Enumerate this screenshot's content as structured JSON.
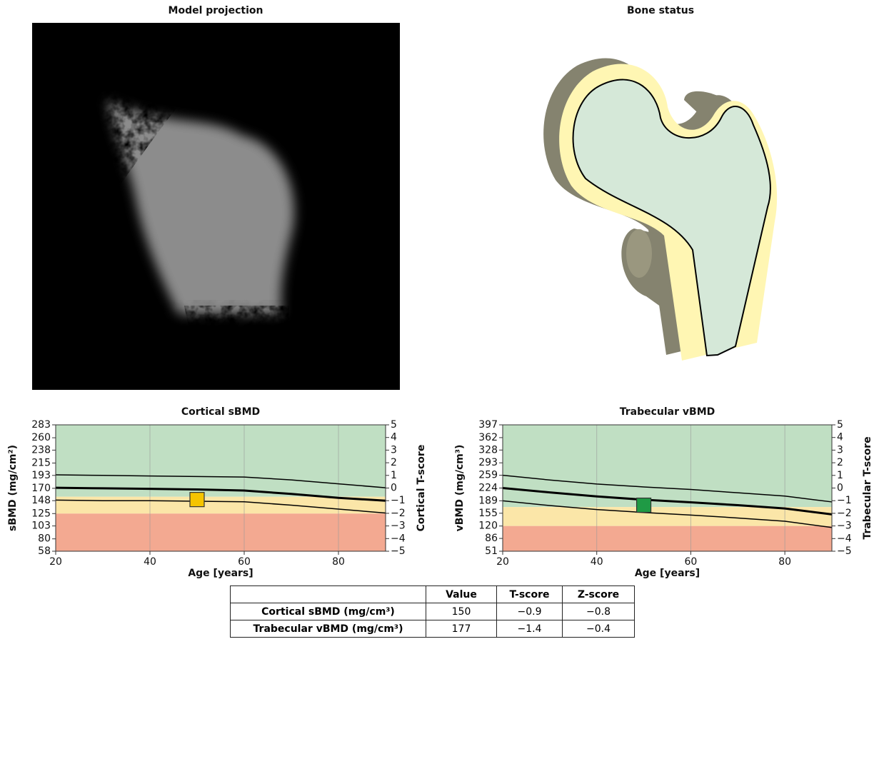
{
  "panels": [
    {
      "title": "Model projection"
    },
    {
      "title": "Bone status"
    }
  ],
  "chart_data": [
    {
      "type": "line",
      "title": "Cortical sBMD",
      "xlabel": "Age [years]",
      "ylabel": "sBMD (mg/cm²)",
      "y2label": "Cortical T-score",
      "x": [
        20,
        30,
        40,
        50,
        60,
        70,
        80,
        90
      ],
      "series": [
        {
          "color": "#000000",
          "values": [
            171,
            170,
            169,
            168,
            166,
            160,
            153,
            148
          ]
        },
        {
          "color": "#000000",
          "values": [
            194,
            193,
            192,
            191,
            190,
            185,
            178,
            171
          ]
        },
        {
          "color": "#000000",
          "values": [
            149,
            148,
            148,
            147,
            146,
            140,
            133,
            126
          ]
        }
      ],
      "point": {
        "x": 50,
        "y": 150,
        "color": "#f5c400"
      },
      "bands": [
        {
          "from": 155,
          "to": 283,
          "color": "#c0dfc3"
        },
        {
          "from": 125,
          "to": 155,
          "color": "#fbe6a8"
        },
        {
          "from": 58,
          "to": 125,
          "color": "#f3a991"
        }
      ],
      "xlim": [
        20,
        90
      ],
      "xticks": [
        20,
        40,
        60,
        80
      ],
      "ylim": [
        58,
        283
      ],
      "yticks": [
        58,
        80,
        103,
        125,
        148,
        170,
        193,
        215,
        238,
        260,
        283
      ],
      "y2lim": [
        -5,
        5
      ],
      "y2ticks": [
        {
          "value": -5,
          "label": "−5"
        },
        {
          "value": -4,
          "label": "−4"
        },
        {
          "value": -3,
          "label": "−3"
        },
        {
          "value": -2,
          "label": "−2"
        },
        {
          "value": -1,
          "label": "−1"
        },
        0,
        1,
        2,
        3,
        4,
        5
      ],
      "grid": "x"
    },
    {
      "type": "line",
      "title": "Trabecular vBMD",
      "xlabel": "Age [years]",
      "ylabel": "vBMD (mg/cm³)",
      "y2label": "Trabecular T-score",
      "x": [
        20,
        30,
        40,
        50,
        60,
        70,
        80,
        90
      ],
      "series": [
        {
          "color": "#000000",
          "values": [
            224,
            212,
            201,
            192,
            185,
            177,
            168,
            152
          ]
        },
        {
          "color": "#000000",
          "values": [
            259,
            246,
            235,
            227,
            220,
            211,
            202,
            186
          ]
        },
        {
          "color": "#000000",
          "values": [
            189,
            176,
            165,
            157,
            150,
            142,
            133,
            116
          ]
        }
      ],
      "point": {
        "x": 50,
        "y": 177,
        "color": "#1f9a45"
      },
      "bands": [
        {
          "from": 172,
          "to": 397,
          "color": "#c0dfc3"
        },
        {
          "from": 120,
          "to": 172,
          "color": "#fbe6a8"
        },
        {
          "from": 51,
          "to": 120,
          "color": "#f3a991"
        }
      ],
      "xlim": [
        20,
        90
      ],
      "xticks": [
        20,
        40,
        60,
        80
      ],
      "ylim": [
        51,
        397
      ],
      "yticks": [
        51,
        86,
        120,
        155,
        189,
        224,
        259,
        293,
        328,
        362,
        397
      ],
      "y2lim": [
        -5,
        5
      ],
      "y2ticks": [
        {
          "value": -5,
          "label": "−5"
        },
        {
          "value": -4,
          "label": "−4"
        },
        {
          "value": -3,
          "label": "−3"
        },
        {
          "value": -2,
          "label": "−2"
        },
        {
          "value": -1,
          "label": "−1"
        },
        0,
        1,
        2,
        3,
        4,
        5
      ],
      "grid": "x"
    }
  ],
  "table": {
    "header": [
      "Value",
      "T-score",
      "Z-score"
    ],
    "rows": [
      [
        "Cortical sBMD (mg/cm³)",
        "150",
        "−0.9",
        "−0.8"
      ],
      [
        "Trabecular vBMD (mg/cm³)",
        "177",
        "−1.4",
        "−0.4"
      ]
    ]
  }
}
